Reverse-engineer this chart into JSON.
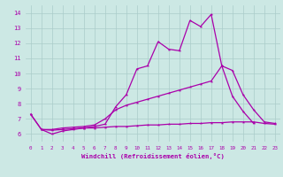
{
  "xlabel": "Windchill (Refroidissement éolien,°C)",
  "xlim": [
    -0.5,
    23.5
  ],
  "ylim": [
    5.5,
    14.5
  ],
  "xticks": [
    0,
    1,
    2,
    3,
    4,
    5,
    6,
    7,
    8,
    9,
    10,
    11,
    12,
    13,
    14,
    15,
    16,
    17,
    18,
    19,
    20,
    21,
    22,
    23
  ],
  "yticks": [
    6,
    7,
    8,
    9,
    10,
    11,
    12,
    13,
    14
  ],
  "background_color": "#cce8e4",
  "grid_color": "#aaccca",
  "line_color": "#aa00aa",
  "xvals": [
    0,
    1,
    2,
    3,
    4,
    5,
    6,
    7,
    8,
    9,
    10,
    11,
    12,
    13,
    14,
    15,
    16,
    17,
    18,
    19,
    20,
    21,
    22,
    23
  ],
  "line1_y": [
    7.3,
    6.3,
    6.0,
    6.2,
    6.3,
    6.4,
    6.5,
    6.65,
    7.8,
    8.6,
    10.3,
    10.5,
    12.1,
    11.6,
    11.5,
    13.5,
    13.1,
    13.9,
    10.5,
    8.5,
    7.5,
    6.7,
    null,
    null
  ],
  "line2_x": [
    1,
    2,
    3,
    4,
    5,
    6,
    7,
    8,
    9,
    10,
    11,
    12,
    13,
    14,
    15,
    16,
    17,
    18,
    19,
    20,
    21,
    22,
    23
  ],
  "line2_y": [
    6.3,
    6.3,
    6.4,
    6.45,
    6.5,
    6.6,
    7.0,
    7.6,
    7.9,
    8.1,
    8.3,
    8.5,
    8.7,
    8.9,
    9.1,
    9.3,
    9.5,
    10.5,
    10.2,
    8.6,
    7.6,
    6.8,
    6.7
  ],
  "line3_y": [
    7.3,
    6.3,
    6.25,
    6.3,
    6.35,
    6.4,
    6.4,
    6.45,
    6.5,
    6.5,
    6.55,
    6.6,
    6.6,
    6.65,
    6.65,
    6.7,
    6.7,
    6.75,
    6.75,
    6.8,
    6.8,
    6.8,
    6.7,
    6.65
  ]
}
